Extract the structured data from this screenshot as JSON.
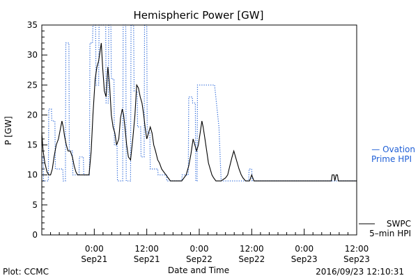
{
  "chart_data": {
    "type": "line",
    "title": "Hemispheric Power [GW]",
    "xlabel": "Date and Time",
    "ylabel": "P [GW]",
    "ylim": [
      0,
      35
    ],
    "y_ticks": [
      0,
      5,
      10,
      15,
      20,
      25,
      30,
      35
    ],
    "x_unit": "hours since 2016-09-20 12:00",
    "xlim": [
      0,
      72
    ],
    "x_ticks": [
      {
        "x": 12,
        "time": "0:00",
        "date": "Sep21"
      },
      {
        "x": 24,
        "time": "12:00",
        "date": "Sep21"
      },
      {
        "x": 36,
        "time": "0:00",
        "date": "Sep22"
      },
      {
        "x": 48,
        "time": "12:00",
        "date": "Sep22"
      },
      {
        "x": 60,
        "time": "0:00",
        "date": "Sep23"
      },
      {
        "x": 72,
        "time": "12:00",
        "date": "Sep23"
      }
    ],
    "grid": false,
    "series": [
      {
        "name": "SWPC 5-min HPI",
        "label_lines": [
          "SWPC",
          "5–min HPI"
        ],
        "color": "#000000",
        "style": "solid",
        "points": [
          [
            0,
            17
          ],
          [
            0.3,
            14
          ],
          [
            0.7,
            12
          ],
          [
            1.2,
            10.5
          ],
          [
            1.6,
            10
          ],
          [
            2.0,
            10
          ],
          [
            2.4,
            11
          ],
          [
            2.8,
            13
          ],
          [
            3.3,
            15
          ],
          [
            3.8,
            16
          ],
          [
            4.2,
            17.5
          ],
          [
            4.6,
            19
          ],
          [
            4.9,
            18
          ],
          [
            5.2,
            16.5
          ],
          [
            5.6,
            15
          ],
          [
            6.0,
            14
          ],
          [
            6.5,
            14
          ],
          [
            7.0,
            13
          ],
          [
            7.4,
            11.5
          ],
          [
            7.8,
            10.5
          ],
          [
            8.2,
            10
          ],
          [
            8.6,
            10
          ],
          [
            9.5,
            10
          ],
          [
            10.8,
            10
          ],
          [
            11.3,
            14
          ],
          [
            11.7,
            20
          ],
          [
            12.2,
            26
          ],
          [
            12.6,
            28
          ],
          [
            13.0,
            29
          ],
          [
            13.4,
            31
          ],
          [
            13.6,
            32
          ],
          [
            13.9,
            28
          ],
          [
            14.3,
            24
          ],
          [
            14.7,
            23
          ],
          [
            15.1,
            28
          ],
          [
            15.5,
            25
          ],
          [
            15.9,
            20
          ],
          [
            16.3,
            18
          ],
          [
            16.7,
            17
          ],
          [
            17.1,
            15
          ],
          [
            17.6,
            16
          ],
          [
            18.0,
            19.5
          ],
          [
            18.4,
            21
          ],
          [
            18.7,
            20
          ],
          [
            19.0,
            18
          ],
          [
            19.4,
            15
          ],
          [
            19.8,
            13
          ],
          [
            20.3,
            12.5
          ],
          [
            20.8,
            16
          ],
          [
            21.3,
            20
          ],
          [
            21.7,
            25
          ],
          [
            22.1,
            24.5
          ],
          [
            22.5,
            23
          ],
          [
            22.9,
            22
          ],
          [
            23.3,
            20
          ],
          [
            23.6,
            18
          ],
          [
            24.0,
            16
          ],
          [
            24.4,
            17
          ],
          [
            24.8,
            18
          ],
          [
            25.2,
            17
          ],
          [
            25.6,
            15
          ],
          [
            26.0,
            14
          ],
          [
            26.5,
            12.5
          ],
          [
            26.9,
            12
          ],
          [
            27.4,
            11
          ],
          [
            27.9,
            10.5
          ],
          [
            28.4,
            10
          ],
          [
            28.9,
            9.5
          ],
          [
            29.4,
            9
          ],
          [
            30.0,
            9
          ],
          [
            31.0,
            9
          ],
          [
            32.0,
            9
          ],
          [
            33.0,
            10
          ],
          [
            33.6,
            11.5
          ],
          [
            34.1,
            13.5
          ],
          [
            34.6,
            16
          ],
          [
            35.0,
            15
          ],
          [
            35.4,
            14
          ],
          [
            35.8,
            15
          ],
          [
            36.2,
            17
          ],
          [
            36.6,
            19
          ],
          [
            36.9,
            18
          ],
          [
            37.3,
            16
          ],
          [
            37.7,
            14
          ],
          [
            38.1,
            12
          ],
          [
            38.5,
            11
          ],
          [
            38.9,
            10
          ],
          [
            39.3,
            9.5
          ],
          [
            39.8,
            9
          ],
          [
            41.0,
            9
          ],
          [
            42.0,
            9.5
          ],
          [
            42.5,
            10
          ],
          [
            43.0,
            11.5
          ],
          [
            43.5,
            13
          ],
          [
            43.9,
            14
          ],
          [
            44.3,
            13
          ],
          [
            44.7,
            12
          ],
          [
            45.1,
            11
          ],
          [
            45.6,
            10
          ],
          [
            46.0,
            9.5
          ],
          [
            46.6,
            9
          ],
          [
            47.5,
            9
          ],
          [
            48.0,
            10
          ],
          [
            48.5,
            9
          ],
          [
            55,
            9
          ],
          [
            60,
            9
          ],
          [
            65,
            9
          ],
          [
            66.2,
            9
          ],
          [
            66.4,
            10
          ],
          [
            66.8,
            10
          ],
          [
            67.0,
            9
          ],
          [
            67.3,
            10
          ],
          [
            67.6,
            10
          ],
          [
            67.8,
            9
          ],
          [
            72,
            9
          ]
        ]
      },
      {
        "name": "Ovation Prime HPI",
        "label_lines": [
          "— Ovation",
          "Prime HPI"
        ],
        "color": "#1f5fd6",
        "style": "dotted",
        "points": [
          [
            0,
            13
          ],
          [
            0.3,
            13
          ],
          [
            0.4,
            9
          ],
          [
            1.5,
            9
          ],
          [
            1.6,
            21
          ],
          [
            2.2,
            21
          ],
          [
            2.3,
            19
          ],
          [
            3.0,
            19
          ],
          [
            3.1,
            11
          ],
          [
            4.8,
            11
          ],
          [
            4.9,
            9
          ],
          [
            5.4,
            9
          ],
          [
            5.5,
            32
          ],
          [
            6.2,
            32
          ],
          [
            6.3,
            14
          ],
          [
            7.0,
            14
          ],
          [
            7.1,
            10
          ],
          [
            8.5,
            10
          ],
          [
            8.6,
            13
          ],
          [
            9.5,
            13
          ],
          [
            9.6,
            10
          ],
          [
            10.9,
            10
          ],
          [
            11.0,
            32
          ],
          [
            11.6,
            32
          ],
          [
            11.7,
            35
          ],
          [
            12.3,
            35
          ],
          [
            12.4,
            25
          ],
          [
            13.0,
            25
          ],
          [
            13.1,
            35
          ],
          [
            14.6,
            35
          ],
          [
            14.7,
            22
          ],
          [
            15.2,
            22
          ],
          [
            15.3,
            35
          ],
          [
            15.8,
            35
          ],
          [
            15.9,
            26
          ],
          [
            16.5,
            26
          ],
          [
            16.6,
            15
          ],
          [
            17.2,
            15
          ],
          [
            17.3,
            9
          ],
          [
            18.5,
            9
          ],
          [
            18.6,
            35
          ],
          [
            19.2,
            35
          ],
          [
            19.3,
            9
          ],
          [
            20.3,
            9
          ],
          [
            20.4,
            35
          ],
          [
            21.0,
            35
          ],
          [
            21.1,
            24
          ],
          [
            21.8,
            24
          ],
          [
            21.9,
            18
          ],
          [
            22.6,
            18
          ],
          [
            22.7,
            13
          ],
          [
            23.4,
            13
          ],
          [
            23.5,
            35
          ],
          [
            24.0,
            35
          ],
          [
            24.1,
            17
          ],
          [
            24.7,
            17
          ],
          [
            24.8,
            11
          ],
          [
            26.5,
            11
          ],
          [
            26.6,
            10
          ],
          [
            28.5,
            10
          ],
          [
            28.6,
            9
          ],
          [
            32.0,
            9
          ],
          [
            32.1,
            10
          ],
          [
            33.5,
            10
          ],
          [
            33.6,
            23
          ],
          [
            34.4,
            23
          ],
          [
            34.5,
            22
          ],
          [
            35.1,
            22
          ],
          [
            35.2,
            9
          ],
          [
            35.5,
            9
          ],
          [
            35.6,
            25
          ],
          [
            39.5,
            25
          ],
          [
            40.5,
            18
          ],
          [
            41.0,
            9
          ],
          [
            47.3,
            9
          ],
          [
            47.4,
            11
          ],
          [
            48.0,
            11
          ],
          [
            48.1,
            9
          ],
          [
            72,
            9
          ]
        ]
      }
    ]
  },
  "footer": {
    "left": "Plot: CCMC",
    "right": "2016/09/23 12:10:31"
  }
}
